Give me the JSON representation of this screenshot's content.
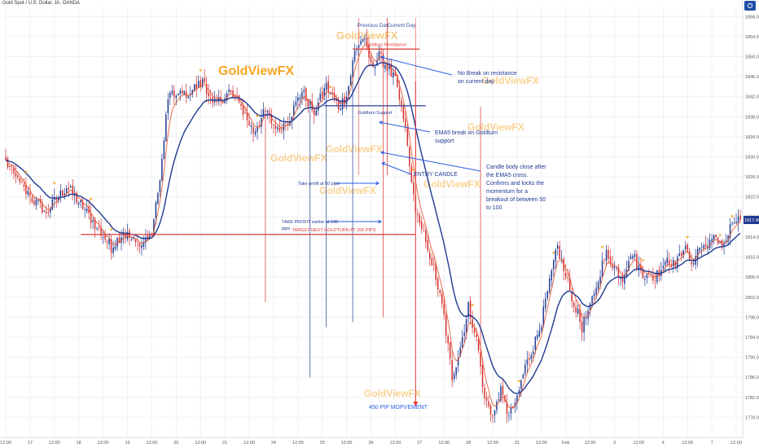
{
  "header": {
    "symbol": "Gold Spot / U.S. Dollar, 1h, OANDA"
  },
  "colors": {
    "up": "#1f3a93",
    "down": "#d32f2f",
    "ema": "#e5512c",
    "ma": "#1f3a93",
    "annotation_blue": "#2b5ce6",
    "annotation_red": "#e53935",
    "watermark": "#f5a623",
    "last_price_bg": "#1f3a93"
  },
  "icons": {
    "settings": "settings-icon"
  },
  "chart_data": {
    "type": "candlestick",
    "timeframe": "1h",
    "y_axis": {
      "ticks": [
        1778,
        1782,
        1786,
        1790,
        1794,
        1798,
        1802,
        1806,
        1810,
        1814,
        1818,
        1822,
        1826,
        1830,
        1834,
        1838,
        1842,
        1846,
        1850,
        1854,
        1858
      ],
      "tick_labels": [
        "1778.00",
        "1782.00",
        "1786.00",
        "1790.00",
        "1794.00",
        "1798.00",
        "1802.00",
        "1806.00",
        "1810.00",
        "1814.00",
        "1818.00",
        "1822.00",
        "1826.00",
        "1830.00",
        "1834.00",
        "1838.00",
        "1842.00",
        "1846.00",
        "1850.00",
        "1854.00",
        "1858.00"
      ],
      "last_price": 1817.4,
      "last_price_label": "1817.405"
    },
    "x_axis": {
      "ticks": [
        {
          "i": 0,
          "label": "12:00"
        },
        {
          "i": 12,
          "label": "17"
        },
        {
          "i": 24,
          "label": "12:00"
        },
        {
          "i": 36,
          "label": "18"
        },
        {
          "i": 48,
          "label": "12:00"
        },
        {
          "i": 60,
          "label": "19"
        },
        {
          "i": 72,
          "label": "12:00"
        },
        {
          "i": 84,
          "label": "20"
        },
        {
          "i": 96,
          "label": "12:00"
        },
        {
          "i": 108,
          "label": "21"
        },
        {
          "i": 120,
          "label": "12:00"
        },
        {
          "i": 132,
          "label": "24"
        },
        {
          "i": 144,
          "label": "12:00"
        },
        {
          "i": 156,
          "label": "25"
        },
        {
          "i": 168,
          "label": "12:00"
        },
        {
          "i": 180,
          "label": "26"
        },
        {
          "i": 192,
          "label": "12:00"
        },
        {
          "i": 204,
          "label": "27"
        },
        {
          "i": 216,
          "label": "12:00"
        },
        {
          "i": 228,
          "label": "28"
        },
        {
          "i": 240,
          "label": "12:00"
        },
        {
          "i": 252,
          "label": "31"
        },
        {
          "i": 264,
          "label": "12:00"
        },
        {
          "i": 276,
          "label": "Feb"
        },
        {
          "i": 288,
          "label": "12:00"
        },
        {
          "i": 300,
          "label": "3"
        },
        {
          "i": 312,
          "label": "12:00"
        },
        {
          "i": 324,
          "label": "4"
        },
        {
          "i": 336,
          "label": "12:00"
        },
        {
          "i": 348,
          "label": "7"
        },
        {
          "i": 360,
          "label": "12:00"
        }
      ]
    },
    "anchors": [
      [
        0,
        1829
      ],
      [
        6,
        1825
      ],
      [
        12,
        1822
      ],
      [
        20,
        1819
      ],
      [
        30,
        1824
      ],
      [
        38,
        1820
      ],
      [
        45,
        1816
      ],
      [
        52,
        1812
      ],
      [
        58,
        1815
      ],
      [
        66,
        1812
      ],
      [
        72,
        1815
      ],
      [
        76,
        1825
      ],
      [
        80,
        1842
      ],
      [
        84,
        1842
      ],
      [
        90,
        1843
      ],
      [
        98,
        1845
      ],
      [
        102,
        1840
      ],
      [
        110,
        1843
      ],
      [
        116,
        1840
      ],
      [
        122,
        1835
      ],
      [
        128,
        1839
      ],
      [
        134,
        1835
      ],
      [
        140,
        1838
      ],
      [
        146,
        1843
      ],
      [
        152,
        1839
      ],
      [
        158,
        1844
      ],
      [
        164,
        1840
      ],
      [
        168,
        1842
      ],
      [
        172,
        1851
      ],
      [
        176,
        1854
      ],
      [
        180,
        1848
      ],
      [
        184,
        1850
      ],
      [
        188,
        1848
      ],
      [
        192,
        1845
      ],
      [
        196,
        1838
      ],
      [
        198,
        1832
      ],
      [
        200,
        1824
      ],
      [
        204,
        1816
      ],
      [
        208,
        1812
      ],
      [
        212,
        1806
      ],
      [
        216,
        1798
      ],
      [
        220,
        1786
      ],
      [
        224,
        1792
      ],
      [
        228,
        1800
      ],
      [
        232,
        1794
      ],
      [
        236,
        1782
      ],
      [
        240,
        1778
      ],
      [
        244,
        1783
      ],
      [
        248,
        1778
      ],
      [
        252,
        1782
      ],
      [
        256,
        1788
      ],
      [
        260,
        1792
      ],
      [
        264,
        1797
      ],
      [
        268,
        1805
      ],
      [
        272,
        1812
      ],
      [
        276,
        1806
      ],
      [
        280,
        1801
      ],
      [
        284,
        1796
      ],
      [
        288,
        1800
      ],
      [
        292,
        1806
      ],
      [
        296,
        1811
      ],
      [
        300,
        1808
      ],
      [
        304,
        1806
      ],
      [
        308,
        1811
      ],
      [
        312,
        1808
      ],
      [
        316,
        1806
      ],
      [
        320,
        1806
      ],
      [
        326,
        1810
      ],
      [
        330,
        1808
      ],
      [
        334,
        1812
      ],
      [
        338,
        1809
      ],
      [
        342,
        1812
      ],
      [
        346,
        1812
      ],
      [
        350,
        1814
      ],
      [
        354,
        1812
      ],
      [
        358,
        1817
      ],
      [
        362,
        1817.4
      ]
    ],
    "spikes": [
      {
        "i": 128,
        "low": 1801
      },
      {
        "i": 150,
        "low": 1786
      },
      {
        "i": 158,
        "low": 1796
      },
      {
        "i": 171,
        "low": 1797
      },
      {
        "i": 186,
        "low": 1798
      },
      {
        "i": 234,
        "high": 1840
      }
    ],
    "levels": [
      {
        "label": "Goldturn Resistance",
        "value": 1851.5,
        "from": 171,
        "to": 204
      },
      {
        "label": "Goldturn Support",
        "value": 1840.2,
        "from": 157,
        "to": 207
      },
      {
        "label": "TARGET NEXT GOLDTURN AT 200 PIPS",
        "value": 1814.5,
        "from": 37,
        "to": 202
      }
    ],
    "zones": [
      {
        "label": "Previous Day",
        "from": 174,
        "to": 188
      },
      {
        "label": "Current Day",
        "from": 188,
        "to": 202
      }
    ],
    "annotations": [
      {
        "text": [
          "No Break on resistance",
          "on current day"
        ]
      },
      {
        "text": [
          "EMA5 break on Goldturn",
          "support"
        ]
      },
      {
        "text": [
          "Candle body close after",
          "the EMA5 cross.",
          "Confirms and locks the",
          "momentum for a",
          "breakout of between 50",
          "to 100"
        ]
      },
      {
        "text": [
          "ENTRY CANDLE"
        ]
      },
      {
        "text": [
          "Take profit at 50 pips"
        ]
      },
      {
        "text": [
          "TAKE PROFIT earlier at 100",
          "pips"
        ]
      },
      {
        "text": [
          "450 PIP MOPVEMENT"
        ]
      }
    ],
    "watermarks": [
      "GoldViewFX",
      "GoldViewFX",
      "GoldViewFX",
      "GoldViewFX",
      "GoldViewFX",
      "GoldViewFX",
      "GoldViewFX",
      "GoldViewFX",
      "GoldViewFX"
    ]
  }
}
